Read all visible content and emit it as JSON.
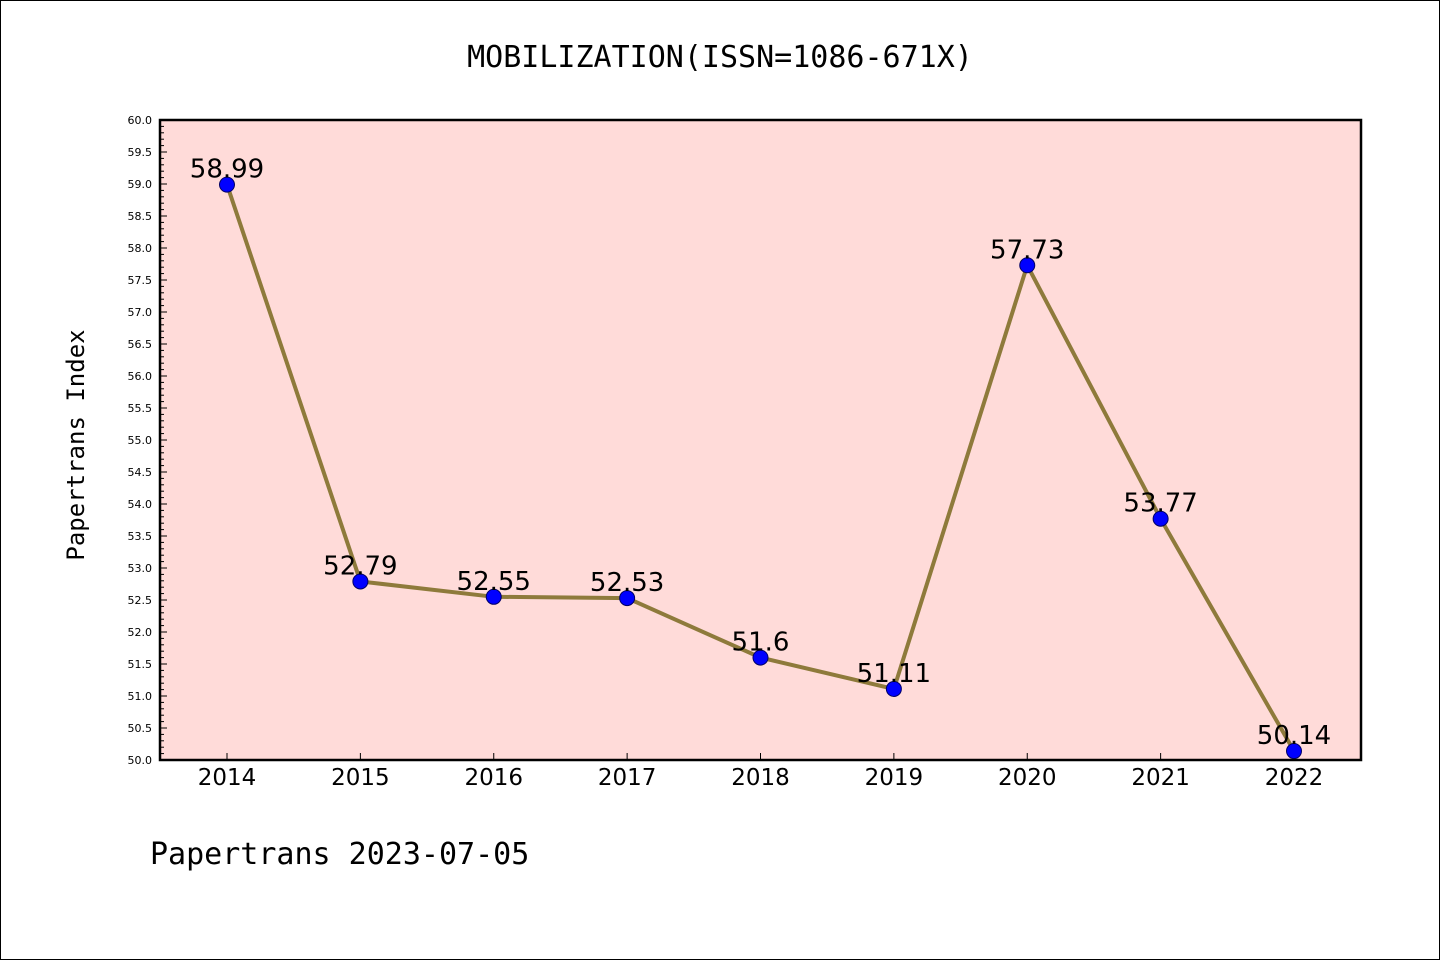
{
  "chart_data": {
    "type": "line",
    "title": "MOBILIZATION(ISSN=1086-671X)",
    "ylabel": "Papertrans Index",
    "xlabel": "",
    "footer": "Papertrans 2023-07-05",
    "x": [
      "2014",
      "2015",
      "2016",
      "2017",
      "2018",
      "2019",
      "2020",
      "2021",
      "2022"
    ],
    "values": [
      58.99,
      52.79,
      52.55,
      52.53,
      51.6,
      51.11,
      57.73,
      53.77,
      50.14
    ],
    "data_labels": [
      "58.99",
      "52.79",
      "52.55",
      "52.53",
      "51.6",
      "51.11",
      "57.73",
      "53.77",
      "50.14"
    ],
    "ylim": [
      50.0,
      60.0
    ],
    "yticks": [
      "50.0",
      "50.5",
      "51.0",
      "51.5",
      "52.0",
      "52.5",
      "53.0",
      "53.5",
      "54.0",
      "54.5",
      "55.0",
      "55.5",
      "56.0",
      "56.5",
      "57.0",
      "57.5",
      "58.0",
      "58.5",
      "59.0",
      "59.5",
      "60.0"
    ],
    "grid": false,
    "legend": "none",
    "colors": {
      "plot_background": "#FFDBD9",
      "line": "#8E7A3B",
      "marker": "#0000FF",
      "axis": "#000000"
    }
  }
}
